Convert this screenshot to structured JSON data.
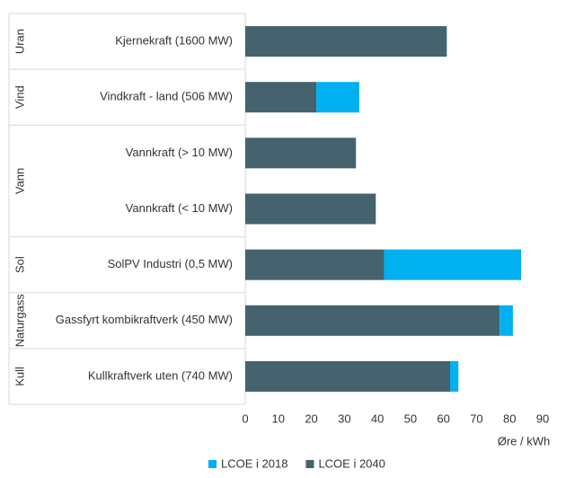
{
  "chart_data": {
    "type": "bar",
    "orientation": "horizontal",
    "stacked": true,
    "categories": [
      "Kjernekraft (1600 MW)",
      "Vindkraft - land (506 MW)",
      "Vannkraft (> 10 MW)",
      "Vannkraft (< 10 MW)",
      "SolPV Industri (0,5 MW)",
      "Gassfyrt kombikraftverk (450 MW)",
      "Kullkraftverk uten (740 MW)"
    ],
    "groups": [
      {
        "name": "Uran",
        "rows": 1
      },
      {
        "name": "Vind",
        "rows": 1
      },
      {
        "name": "Vann",
        "rows": 2
      },
      {
        "name": "Sol",
        "rows": 1
      },
      {
        "name": "Naturgass",
        "rows": 1
      },
      {
        "name": "Kull",
        "rows": 1
      }
    ],
    "series": [
      {
        "name": "LCOE i 2040",
        "color": "#44636f",
        "values": [
          61,
          21.5,
          33.5,
          39.5,
          42,
          77,
          62
        ]
      },
      {
        "name": "LCOE i 2018",
        "color": "#00b0f0",
        "values": [
          0,
          13,
          0,
          0,
          41.5,
          4,
          2.5
        ]
      }
    ],
    "xlim": [
      0,
      90
    ],
    "xticks": [
      0,
      10,
      20,
      30,
      40,
      50,
      60,
      70,
      80,
      90
    ],
    "xlabel": "Øre / kWh",
    "grid": false,
    "legend": "bottom"
  }
}
